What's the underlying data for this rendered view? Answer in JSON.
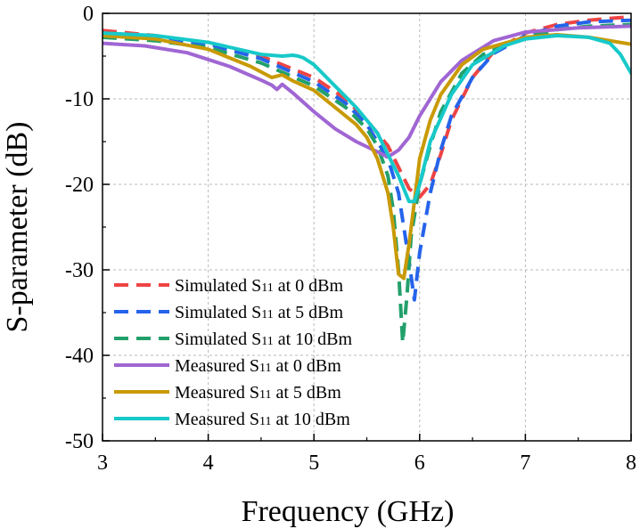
{
  "chart_data": {
    "type": "line",
    "title": "",
    "xlabel": "Frequency (GHz)",
    "ylabel": "S-parameter (dB)",
    "xlim": [
      3,
      8
    ],
    "ylim": [
      -50,
      0
    ],
    "xticks": [
      3,
      4,
      5,
      6,
      7,
      8
    ],
    "yticks": [
      0,
      -10,
      -20,
      -30,
      -40,
      -50
    ],
    "xtick_labels": [
      "3",
      "4",
      "5",
      "6",
      "7",
      "8"
    ],
    "ytick_labels": [
      "0",
      "-10",
      "-20",
      "-30",
      "-40",
      "-50"
    ],
    "grid": true,
    "legend_position": "bottom-left",
    "series": [
      {
        "name": "Simulated S11 at 0 dBm",
        "legend_prefix": "Simulated S",
        "legend_sub": "11",
        "legend_suffix": " at 0 dBm",
        "color": "#ef4444",
        "style": "dashed",
        "x": [
          3.0,
          3.5,
          4.0,
          4.5,
          5.0,
          5.3,
          5.5,
          5.7,
          5.8,
          5.9,
          6.0,
          6.1,
          6.2,
          6.3,
          6.5,
          6.7,
          7.0,
          7.3,
          7.6,
          8.0
        ],
        "y": [
          -2.0,
          -2.6,
          -3.5,
          -5.0,
          -7.5,
          -10.0,
          -12.5,
          -15.5,
          -18.0,
          -20.5,
          -21.5,
          -20.0,
          -16.5,
          -12.5,
          -7.5,
          -4.5,
          -2.3,
          -1.3,
          -0.8,
          -0.4
        ]
      },
      {
        "name": "Simulated S11 at 5 dBm",
        "legend_prefix": "Simulated S",
        "legend_sub": "11",
        "legend_suffix": " at 5 dBm",
        "color": "#2563eb",
        "style": "dashed",
        "x": [
          3.0,
          3.5,
          4.0,
          4.5,
          5.0,
          5.3,
          5.5,
          5.7,
          5.8,
          5.85,
          5.9,
          5.95,
          6.0,
          6.1,
          6.2,
          6.3,
          6.5,
          6.7,
          7.0,
          7.3,
          7.6,
          8.0
        ],
        "y": [
          -2.3,
          -2.8,
          -3.6,
          -5.3,
          -8.0,
          -10.5,
          -13.0,
          -17.0,
          -21.0,
          -25.0,
          -29.0,
          -33.5,
          -28.0,
          -21.0,
          -16.0,
          -12.0,
          -7.5,
          -4.7,
          -2.6,
          -1.5,
          -1.0,
          -0.8
        ]
      },
      {
        "name": "Simulated S11 at 10 dBm",
        "legend_prefix": "Simulated S",
        "legend_sub": "11",
        "legend_suffix": " at 10 dBm",
        "color": "#22a06b",
        "style": "dashed",
        "x": [
          3.0,
          3.5,
          4.0,
          4.5,
          5.0,
          5.3,
          5.5,
          5.6,
          5.7,
          5.75,
          5.8,
          5.84,
          5.88,
          5.92,
          6.0,
          6.1,
          6.2,
          6.4,
          6.6,
          7.0,
          7.3,
          7.6,
          8.0
        ],
        "y": [
          -2.8,
          -3.2,
          -4.0,
          -5.8,
          -8.5,
          -11.0,
          -13.5,
          -15.5,
          -19.0,
          -23.0,
          -30.0,
          -38.5,
          -33.0,
          -26.0,
          -20.0,
          -15.5,
          -11.5,
          -7.0,
          -4.8,
          -2.8,
          -1.9,
          -1.5,
          -1.3
        ]
      },
      {
        "name": "Measured S11 at 0 dBm",
        "legend_prefix": "Measured S",
        "legend_sub": "11",
        "legend_suffix": " at 0 dBm",
        "color": "#a066d3",
        "style": "solid",
        "x": [
          3.0,
          3.4,
          3.8,
          4.2,
          4.5,
          4.6,
          4.65,
          4.7,
          4.8,
          5.0,
          5.2,
          5.4,
          5.6,
          5.7,
          5.8,
          5.9,
          6.0,
          6.2,
          6.4,
          6.7,
          7.0,
          7.5,
          8.0
        ],
        "y": [
          -3.5,
          -3.8,
          -4.6,
          -6.2,
          -7.8,
          -8.4,
          -8.9,
          -8.3,
          -9.3,
          -11.5,
          -13.5,
          -15.0,
          -16.2,
          -16.8,
          -16.0,
          -14.5,
          -12.0,
          -8.0,
          -5.5,
          -3.2,
          -2.2,
          -1.7,
          -1.5
        ]
      },
      {
        "name": "Measured S11 at 5 dBm",
        "legend_prefix": "Measured S",
        "legend_sub": "11",
        "legend_suffix": " at 5 dBm",
        "color": "#c99a06",
        "style": "solid",
        "x": [
          3.0,
          3.5,
          4.0,
          4.4,
          4.6,
          4.7,
          4.8,
          5.0,
          5.2,
          5.4,
          5.5,
          5.6,
          5.7,
          5.75,
          5.8,
          5.85,
          5.9,
          5.95,
          6.0,
          6.1,
          6.2,
          6.4,
          6.6,
          7.0,
          7.3,
          7.6,
          8.0
        ],
        "y": [
          -2.6,
          -3.0,
          -4.2,
          -6.2,
          -7.5,
          -7.2,
          -7.9,
          -9.0,
          -11.0,
          -13.0,
          -14.5,
          -17.0,
          -21.0,
          -25.0,
          -30.5,
          -31.0,
          -27.0,
          -22.0,
          -17.0,
          -12.5,
          -9.5,
          -6.0,
          -4.2,
          -2.8,
          -2.5,
          -2.8,
          -3.6
        ]
      },
      {
        "name": "Measured S11 at 10 dBm",
        "legend_prefix": "Measured S",
        "legend_sub": "11",
        "legend_suffix": " at 10 dBm",
        "color": "#17c9c9",
        "style": "solid",
        "x": [
          3.0,
          3.5,
          4.0,
          4.5,
          4.7,
          4.8,
          4.85,
          4.9,
          5.0,
          5.2,
          5.4,
          5.6,
          5.7,
          5.8,
          5.9,
          5.95,
          6.0,
          6.1,
          6.3,
          6.5,
          6.8,
          7.0,
          7.3,
          7.6,
          7.8,
          7.9,
          8.0
        ],
        "y": [
          -2.3,
          -2.6,
          -3.4,
          -4.8,
          -5.0,
          -4.9,
          -5.0,
          -5.2,
          -6.0,
          -8.5,
          -11.0,
          -14.0,
          -16.5,
          -19.0,
          -22.0,
          -22.0,
          -20.0,
          -15.0,
          -9.5,
          -6.0,
          -3.8,
          -3.0,
          -2.6,
          -2.8,
          -3.5,
          -4.8,
          -7.0
        ]
      }
    ]
  }
}
